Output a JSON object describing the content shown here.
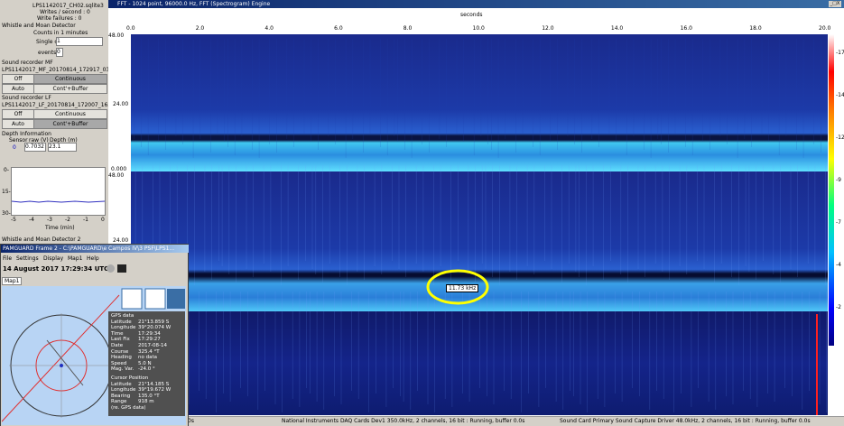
{
  "left_panel": {
    "file": "LPS1142017_CH02.sqlite3",
    "writes": "Writes / second : 0",
    "failures": "Write failures : 0",
    "whistle_title": "Whistle and Moan Detector",
    "counts": "Counts in 1 minutes",
    "single_label": "Single c",
    "single_value": "1",
    "events_label": "events",
    "events_value": "0",
    "rec_mf": {
      "title": "Sound recorder MF",
      "file": "LPS1142017_MF_20170814_172917_030.wav",
      "buttons": [
        "Off",
        "Continuous",
        "Auto",
        "Cont'+Buffer"
      ]
    },
    "rec_lf": {
      "title": "Sound recorder LF",
      "file": "LPS1142017_LF_20170814_172007_165.wav",
      "buttons": [
        "Off",
        "Continuous",
        "Auto",
        "Cont'+Buffer"
      ]
    },
    "depth": {
      "title": "Depth Information",
      "headers": [
        "Sensor",
        "raw (V)",
        "Depth (m)"
      ],
      "row": [
        "0",
        "0.7032",
        "23.1"
      ],
      "yticks": [
        "0-",
        "15-",
        "30-"
      ],
      "xticks": [
        "-5",
        "-4",
        "-3",
        "-2",
        "-1",
        "0"
      ],
      "xlabel": "Time (min)"
    },
    "whistle2": "Whistle and Moan Detector 2"
  },
  "spectrogram": {
    "title": "FFT - 1024 point, 96000.0 Hz, FFT (Spectrogram) Engine",
    "xlabel": "seconds",
    "xticks": [
      "0.0",
      "2.0",
      "4.0",
      "6.0",
      "8.0",
      "10.0",
      "12.0",
      "14.0",
      "16.0",
      "18.0",
      "20.0"
    ],
    "panel_labels": [
      "48.00",
      "24.00",
      "0.000",
      "48.00",
      "24.00"
    ],
    "cursor_label": "11.73 kHz",
    "colorbar_ticks": [
      "-17",
      "-14",
      "-12",
      "-9",
      "-7",
      "-4",
      "-2"
    ]
  },
  "status": [
    "0s",
    "National Instruments DAQ Cards Dev1 350.0kHz, 2 channels, 16 bit : Running, buffer 0.0s",
    "Sound Card Primary Sound Capture Driver 48.0kHz, 2 channels, 16 bit : Running, buffer 0.0s"
  ],
  "map_window": {
    "title": "PAMGUARD Frame 2 - C:\\PAMGUARD\\e Campos IV\\3 PSF\\LPS1...",
    "menu": [
      "File",
      "Settings",
      "Display",
      "Map1",
      "Help"
    ],
    "datetime": "14 August 2017 17:29:34 UTC",
    "tab": "Map1",
    "gps_title": "GPS data",
    "gps": [
      [
        "Latitude",
        "21°13.859 S"
      ],
      [
        "Longitude",
        "39°20.074 W"
      ],
      [
        "Time",
        "17:29:34"
      ],
      [
        "Last Fix",
        "17:29:27"
      ],
      [
        "Date",
        "2017-08-14"
      ],
      [
        "Course",
        "325.4 °T"
      ],
      [
        "Heading",
        "no data"
      ],
      [
        "Speed",
        "5.0 N"
      ],
      [
        "Mag. Var.",
        "-24.0 °"
      ]
    ],
    "cursor_title": "Cursor Position",
    "cursor": [
      [
        "Latitude",
        "21°14.185 S"
      ],
      [
        "Longitude",
        "39°19.672 W"
      ],
      [
        "Bearing",
        "135.0 °T"
      ],
      [
        "Range",
        "918 m"
      ]
    ],
    "cursor_note": "(re. GPS data)"
  }
}
